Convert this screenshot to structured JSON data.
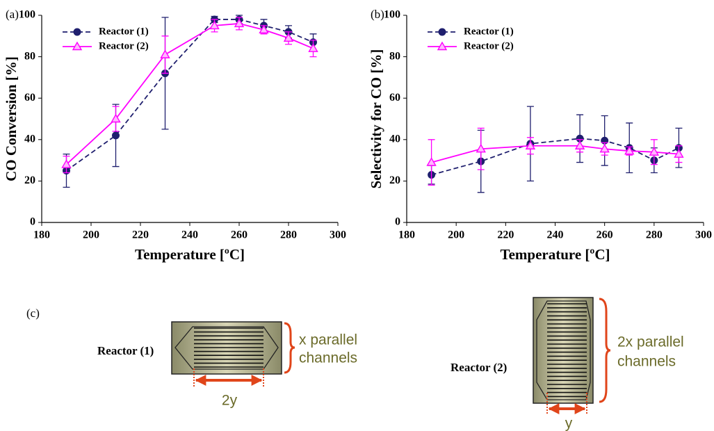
{
  "chart_data": [
    {
      "type": "line",
      "panel_label": "(a)",
      "xlabel": "Temperature [ºC]",
      "ylabel": "CO Conversion [%]",
      "x": [
        190,
        210,
        230,
        250,
        260,
        270,
        280,
        290
      ],
      "xlim": [
        180,
        300
      ],
      "xticks": [
        180,
        200,
        220,
        240,
        260,
        280,
        300
      ],
      "ylim": [
        0,
        100
      ],
      "yticks": [
        0,
        20,
        40,
        60,
        80,
        100
      ],
      "legend": "upper left",
      "series": [
        {
          "name": "Reactor (1)",
          "color": "#1f1f6e",
          "dash": true,
          "marker": "circle",
          "values": [
            25,
            42,
            72,
            98,
            98,
            95,
            92,
            87
          ],
          "errors": [
            8,
            15,
            27,
            1.5,
            2,
            3,
            3,
            4
          ]
        },
        {
          "name": "Reactor (2)",
          "color": "#ff00ff",
          "dash": false,
          "marker": "triangle",
          "values": [
            28,
            50,
            81,
            95,
            96,
            93,
            89,
            84
          ],
          "errors": [
            4,
            6,
            9,
            3,
            3,
            2,
            3,
            4
          ]
        }
      ]
    },
    {
      "type": "line",
      "panel_label": "(b)",
      "xlabel": "Temperature [ºC]",
      "ylabel": "Selectivity for CO [%]",
      "x": [
        190,
        210,
        230,
        250,
        260,
        270,
        280,
        290
      ],
      "xlim": [
        180,
        300
      ],
      "xticks": [
        180,
        200,
        220,
        240,
        260,
        280,
        300
      ],
      "ylim": [
        0,
        100
      ],
      "yticks": [
        0,
        20,
        40,
        60,
        80,
        100
      ],
      "legend": "upper left",
      "series": [
        {
          "name": "Reactor (1)",
          "color": "#1f1f6e",
          "dash": true,
          "marker": "circle",
          "values": [
            23,
            29.5,
            38,
            40.5,
            39.5,
            36,
            30,
            36
          ],
          "errors": [
            4.5,
            15,
            18,
            11.5,
            12,
            12,
            6,
            9.5
          ]
        },
        {
          "name": "Reactor (2)",
          "color": "#ff00ff",
          "dash": false,
          "marker": "triangle",
          "values": [
            29,
            35.5,
            37,
            37,
            35.5,
            34.5,
            34,
            33
          ],
          "errors": [
            11,
            10,
            4,
            3,
            3,
            2,
            6,
            4
          ]
        }
      ]
    }
  ],
  "diagram": {
    "label": "(c)",
    "reactors": [
      {
        "name": "Reactor (1)",
        "channel_lines": [
          "x parallel",
          "channels"
        ],
        "width_label": "2y"
      },
      {
        "name": "Reactor (2)",
        "channel_lines": [
          "2x parallel",
          "channels"
        ],
        "width_label": "y"
      }
    ]
  }
}
